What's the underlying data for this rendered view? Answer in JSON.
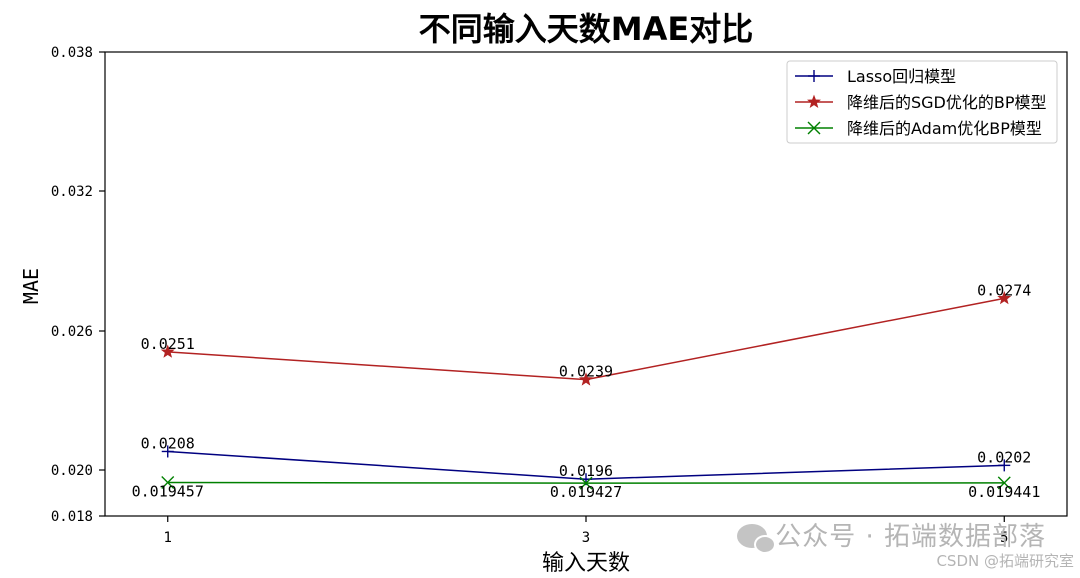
{
  "chart_data": {
    "type": "line",
    "title": "不同输入天数MAE对比",
    "xlabel": "输入天数",
    "ylabel": "MAE",
    "x": [
      1,
      3,
      5
    ],
    "xticks": [
      "1",
      "3",
      "5"
    ],
    "yticks": [
      0.018,
      0.02,
      0.026,
      0.032,
      0.038
    ],
    "ytick_labels": [
      "0.018",
      "0.020",
      "0.026",
      "0.032",
      "0.038"
    ],
    "ylim": [
      0.018,
      0.038
    ],
    "grid": false,
    "legend_position": "top-right",
    "series": [
      {
        "name": "Lasso回归模型",
        "values": [
          0.0208,
          0.0196,
          0.0202
        ],
        "labels": [
          "0.0208",
          "0.0196",
          "0.0202"
        ],
        "color": "#000080",
        "marker": "plus"
      },
      {
        "name": "降维后的SGD优化的BP模型",
        "values": [
          0.0251,
          0.0239,
          0.0274
        ],
        "labels": [
          "0.0251",
          "0.0239",
          "0.0274"
        ],
        "color": "#b22222",
        "marker": "star"
      },
      {
        "name": "降维后的Adam优化BP模型",
        "values": [
          0.019457,
          0.019427,
          0.019441
        ],
        "labels": [
          "0.019457",
          "0.019427",
          "0.019441"
        ],
        "color": "#008000",
        "marker": "x"
      }
    ]
  },
  "watermark": {
    "main": "公众号 · 拓端数据部落",
    "sub": "CSDN @拓端研究室",
    "icon": "wechat-icon"
  }
}
